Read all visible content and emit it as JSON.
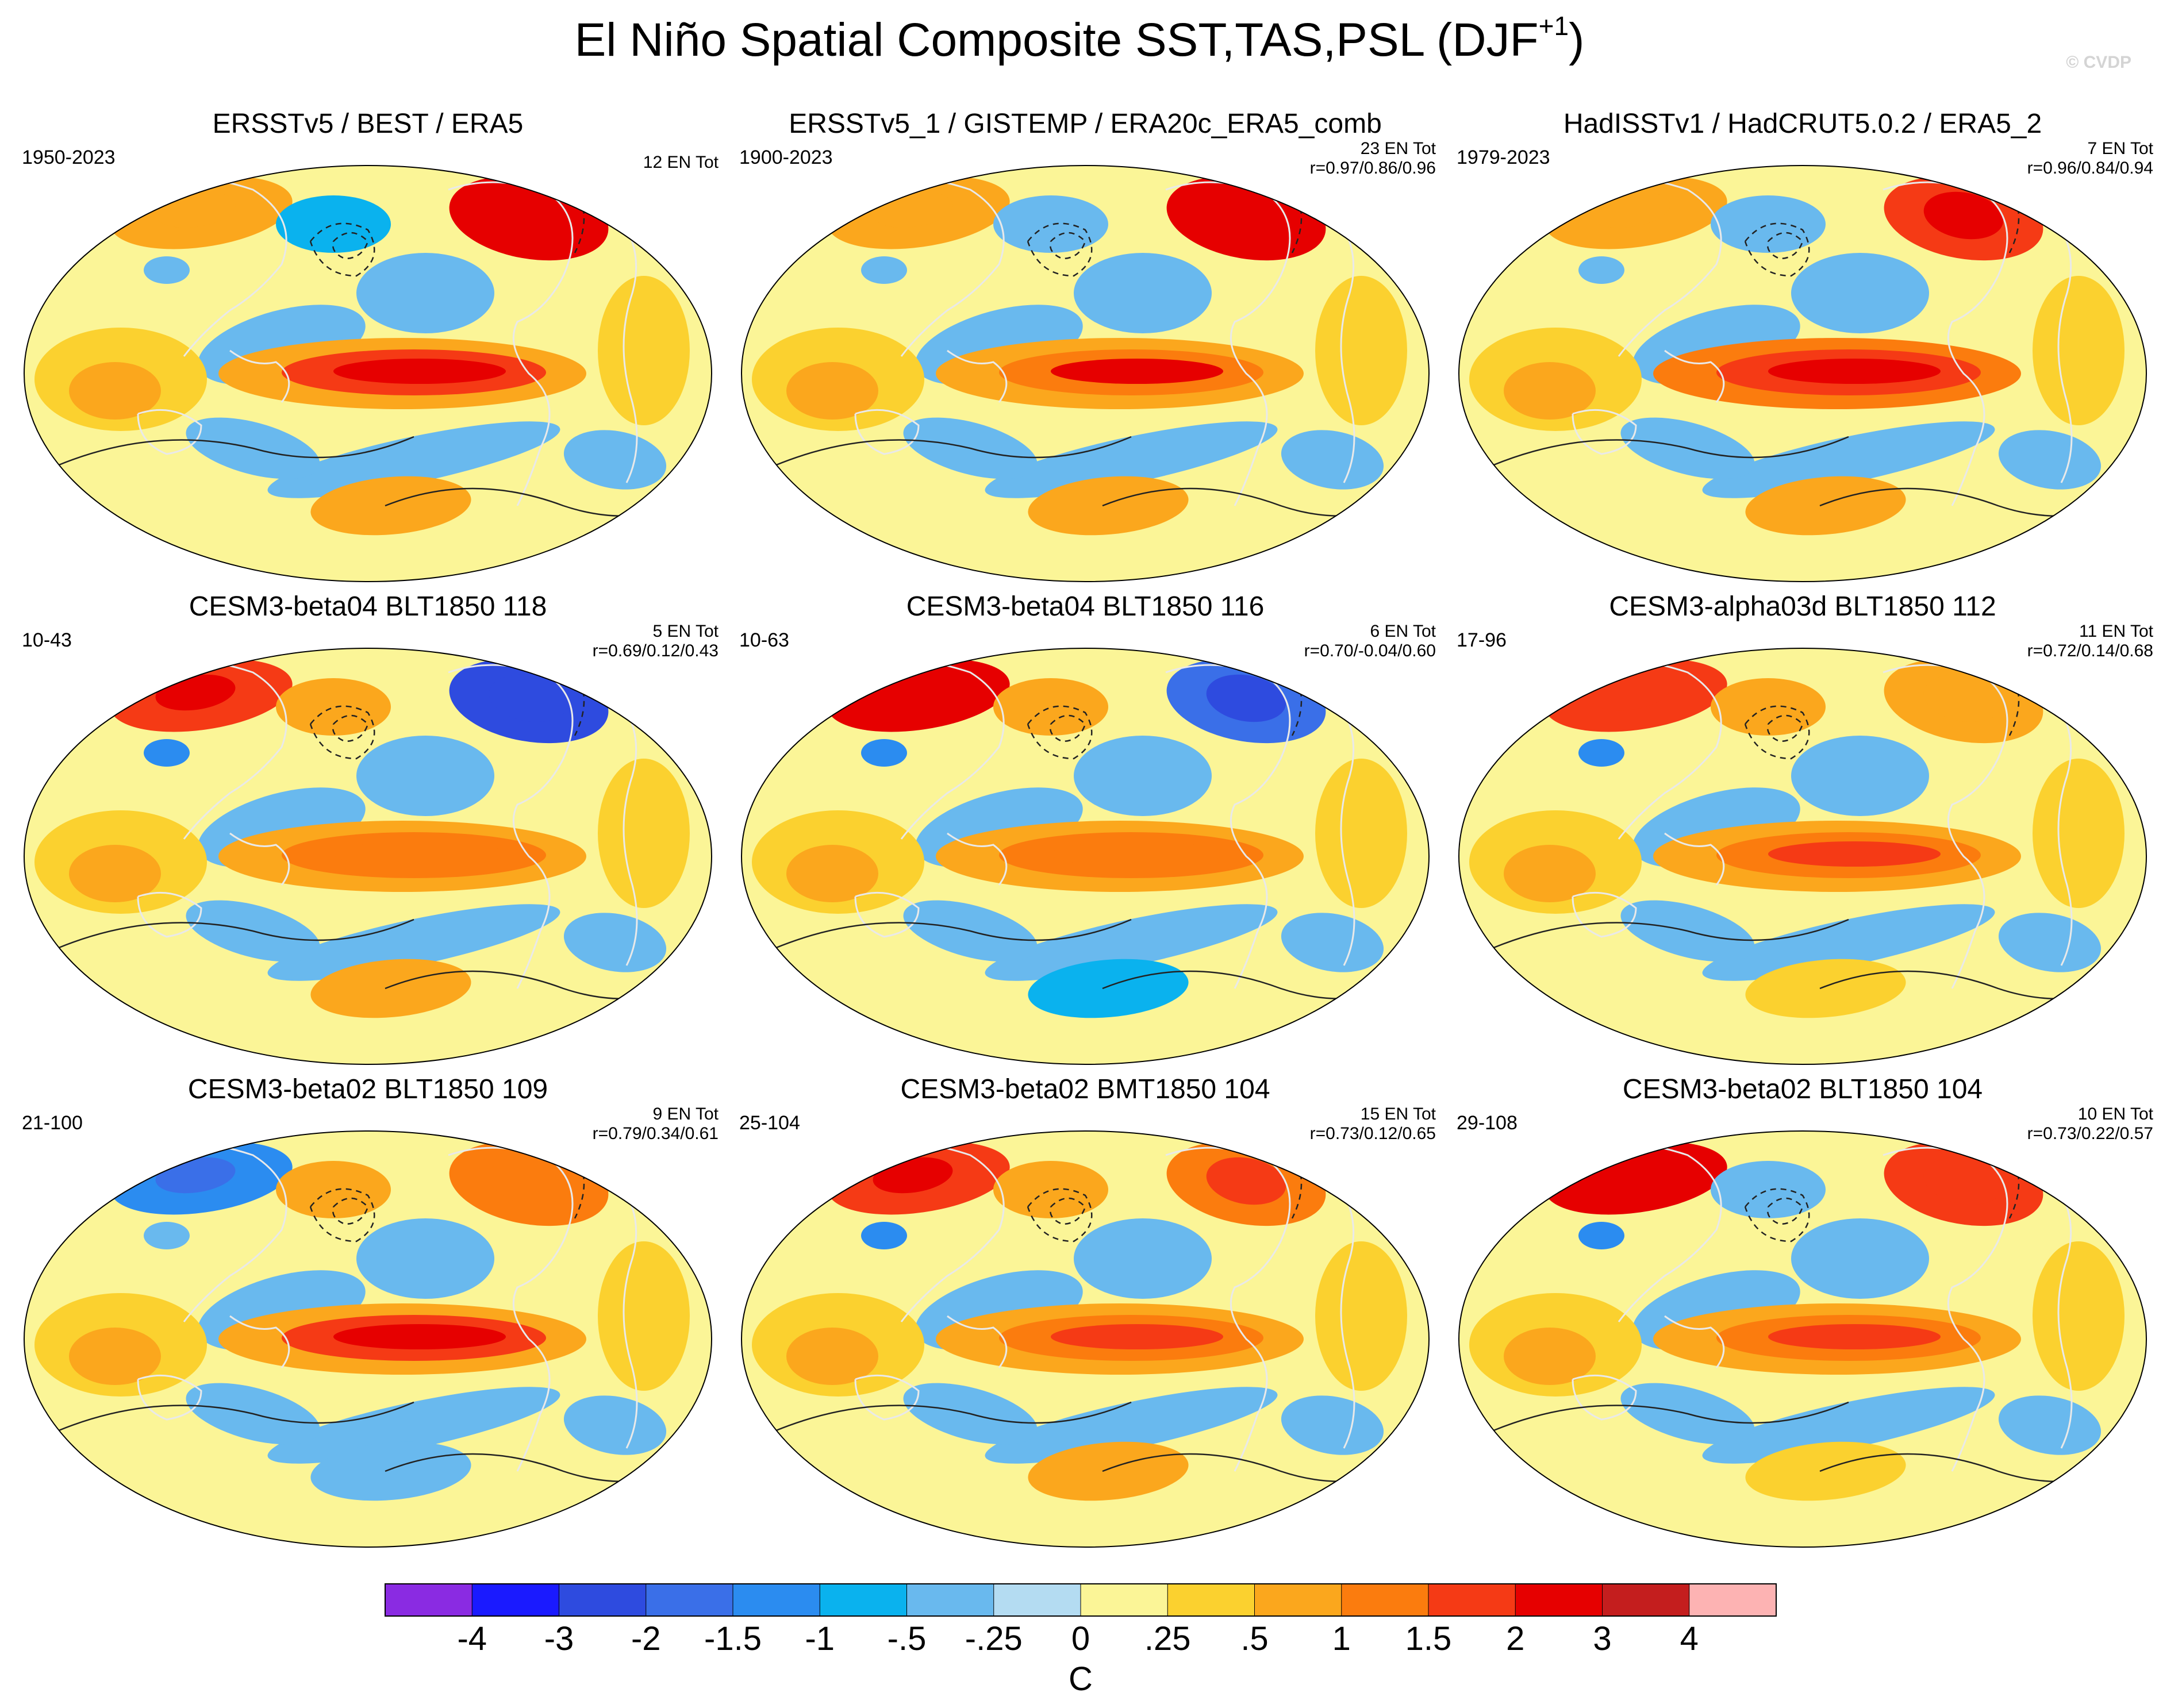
{
  "figure": {
    "title_main": "El Niño Spatial Composite SST,TAS,PSL (DJF",
    "title_sup": "+1",
    "title_close": ")",
    "watermark": "© CVDP"
  },
  "chart_data": {
    "type": "heatmap",
    "variables": [
      "SST",
      "TAS",
      "PSL"
    ],
    "season": "DJF+1",
    "overlay": "PSL contours (solid positive, dashed negative)",
    "colorbar": {
      "unit": "C",
      "levels": [
        "-4",
        "-3",
        "-2",
        "-1.5",
        "-1",
        "-.5",
        "-.25",
        "0",
        ".25",
        ".5",
        "1",
        "1.5",
        "2",
        "3",
        "4"
      ],
      "colors": [
        "#8a2be2",
        "#1a1aff",
        "#2e4bdf",
        "#3a6fe8",
        "#2b8cf0",
        "#0ab2ee",
        "#69b9ee",
        "#b4dcf2",
        "#fbf597",
        "#fbd12f",
        "#fba71d",
        "#fb7c0e",
        "#f53a15",
        "#e60000",
        "#c41e1e",
        "#fdb3b3"
      ]
    },
    "panels": [
      {
        "title": "ERSSTv5 / BEST / ERA5",
        "years": "1950-2023",
        "en_count": "12 EN Tot",
        "correlation": "",
        "nino_peak": 2.2,
        "na_anom": 2.2,
        "eu_anom": 0.6,
        "nwp_anom": -0.6,
        "so_anom": 0.8
      },
      {
        "title": "ERSSTv5_1 / GISTEMP / ERA20c_ERA5_comb",
        "years": "1900-2023",
        "en_count": "23 EN Tot",
        "correlation": "r=0.97/0.86/0.96",
        "nino_peak": 2.0,
        "na_anom": 2.3,
        "eu_anom": 0.6,
        "nwp_anom": -0.4,
        "so_anom": 0.9
      },
      {
        "title": "HadISSTv1 / HadCRUT5.0.2 / ERA5_2",
        "years": "1979-2023",
        "en_count": "7 EN Tot",
        "correlation": "r=0.96/0.84/0.94",
        "nino_peak": 2.3,
        "na_anom": 1.7,
        "eu_anom": 0.7,
        "nwp_anom": -0.5,
        "so_anom": 0.9
      },
      {
        "title": "CESM3-beta04 BLT1850 118",
        "years": "10-43",
        "en_count": "5 EN Tot",
        "correlation": "r=0.69/0.12/0.43",
        "nino_peak": 1.3,
        "na_anom": -2.2,
        "eu_anom": 1.8,
        "nwp_anom": 0.8,
        "so_anom": 0.5
      },
      {
        "title": "CESM3-beta04 BLT1850 116",
        "years": "10-63",
        "en_count": "6 EN Tot",
        "correlation": "r=0.70/-0.04/0.60",
        "nino_peak": 1.3,
        "na_anom": -1.8,
        "eu_anom": 2.0,
        "nwp_anom": 0.6,
        "so_anom": -0.8
      },
      {
        "title": "CESM3-alpha03d BLT1850 112",
        "years": "17-96",
        "en_count": "11 EN Tot",
        "correlation": "r=0.72/0.14/0.68",
        "nino_peak": 1.6,
        "na_anom": 0.6,
        "eu_anom": 1.5,
        "nwp_anom": 0.6,
        "so_anom": 0.4
      },
      {
        "title": "CESM3-beta02 BLT1850 109",
        "years": "21-100",
        "en_count": "9 EN Tot",
        "correlation": "r=0.79/0.34/0.61",
        "nino_peak": 2.2,
        "na_anom": 1.2,
        "eu_anom": -1.4,
        "nwp_anom": 0.6,
        "so_anom": -0.4
      },
      {
        "title": "CESM3-beta02 BMT1850 104",
        "years": "25-104",
        "en_count": "15 EN Tot",
        "correlation": "r=0.73/0.12/0.65",
        "nino_peak": 1.8,
        "na_anom": 1.3,
        "eu_anom": 1.7,
        "nwp_anom": 0.5,
        "so_anom": 0.5
      },
      {
        "title": "CESM3-beta02 BLT1850 104",
        "years": "29-108",
        "en_count": "10 EN Tot",
        "correlation": "r=0.73/0.22/0.57",
        "nino_peak": 1.6,
        "na_anom": 1.6,
        "eu_anom": 2.3,
        "nwp_anom": -0.5,
        "so_anom": 0.4
      }
    ]
  }
}
